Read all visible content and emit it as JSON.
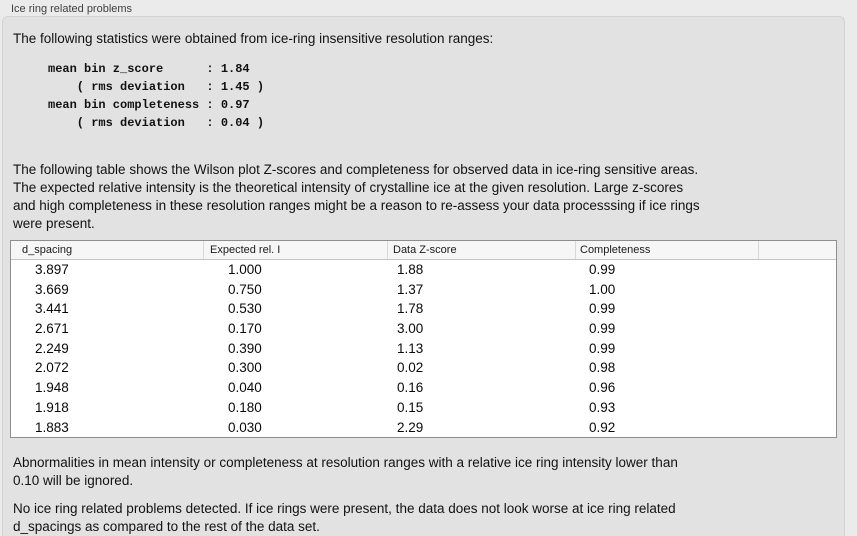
{
  "section": {
    "title": "Ice ring related problems"
  },
  "intro_text": "The following statistics were obtained from ice-ring insensitive resolution ranges:",
  "stats_block": "mean bin z_score      : 1.84\n    ( rms deviation   : 1.45 )\nmean bin completeness : 0.97\n    ( rms deviation   : 0.04 )",
  "stats": {
    "mean_bin_z_score": "1.84",
    "z_score_rms_deviation": "1.45",
    "mean_bin_completeness": "0.97",
    "completeness_rms_deviation": "0.04"
  },
  "table_description": "The following table shows the Wilson plot Z-scores and completeness for observed data in ice-ring sensitive areas.\nThe expected relative intensity is the theoretical intensity of crystalline ice at the given resolution. Large z-scores\nand high completeness in these resolution ranges might be a reason to re-assess your data processsing if ice rings\nwere present.",
  "table": {
    "columns": [
      "d_spacing",
      "Expected rel. I",
      "Data Z-score",
      "Completeness"
    ],
    "rows": [
      [
        "3.897",
        "1.000",
        "1.88",
        "0.99"
      ],
      [
        "3.669",
        "0.750",
        "1.37",
        "1.00"
      ],
      [
        "3.441",
        "0.530",
        "1.78",
        "0.99"
      ],
      [
        "2.671",
        "0.170",
        "3.00",
        "0.99"
      ],
      [
        "2.249",
        "0.390",
        "1.13",
        "0.99"
      ],
      [
        "2.072",
        "0.300",
        "0.02",
        "0.98"
      ],
      [
        "1.948",
        "0.040",
        "0.16",
        "0.96"
      ],
      [
        "1.918",
        "0.180",
        "0.15",
        "0.93"
      ],
      [
        "1.883",
        "0.030",
        "2.29",
        "0.92"
      ]
    ]
  },
  "abnormalities_note": "Abnormalities in mean intensity or completeness at resolution ranges with a relative ice ring intensity lower than\n0.10 will be ignored.",
  "conclusion": "No ice ring related problems detected. If ice rings were present, the data does not look worse at ice ring related\nd_spacings as compared to the rest of the data set.",
  "colors": {
    "page_background": "#ebebeb",
    "panel_background": "#e2e2e2",
    "table_border": "#8e8e8e",
    "table_header_background": "#f6f6f6",
    "text": "#121212"
  }
}
